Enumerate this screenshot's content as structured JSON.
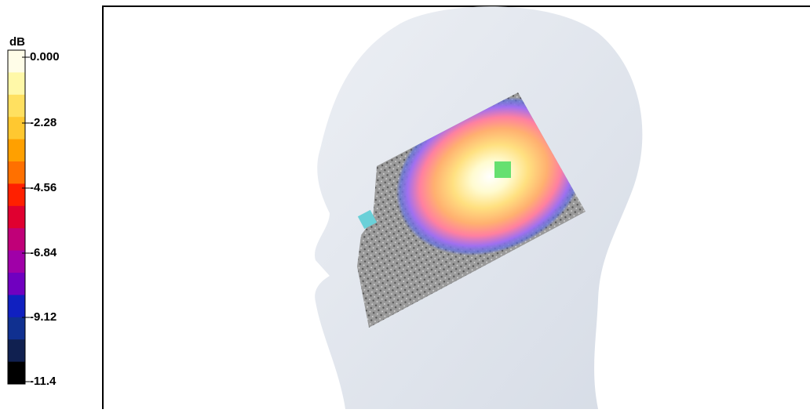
{
  "colorbar": {
    "unit": "dB",
    "ticks": [
      "0.000",
      "-2.28",
      "-4.56",
      "-6.84",
      "-9.12",
      "-11.4"
    ]
  }
}
